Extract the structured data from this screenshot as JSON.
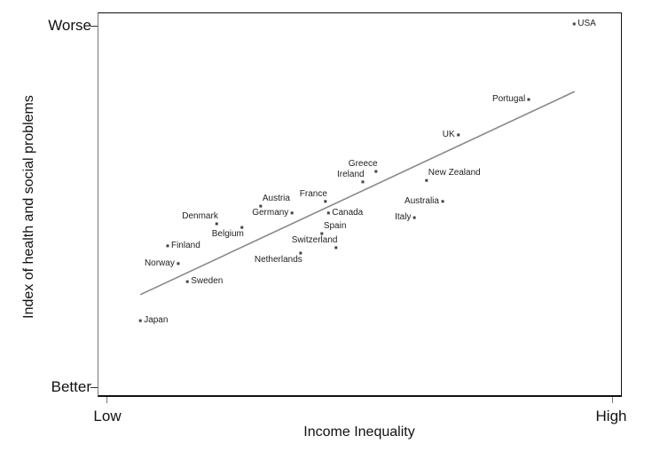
{
  "chart_data": {
    "type": "scatter",
    "title": "",
    "xlabel": "Income Inequality",
    "ylabel": "Index of health and social problems",
    "x_tick_labels": [
      "Low",
      "High"
    ],
    "y_tick_labels": [
      "Better",
      "Worse"
    ],
    "xlim": [
      0,
      100
    ],
    "ylim": [
      0,
      100
    ],
    "grid": false,
    "legend": null,
    "points": [
      {
        "label": "USA",
        "x": 92.5,
        "y": 100.5,
        "label_side": "right"
      },
      {
        "label": "Portugal",
        "x": 83.5,
        "y": 79.6,
        "label_side": "left"
      },
      {
        "label": "UK",
        "x": 69.6,
        "y": 69.8,
        "label_side": "left"
      },
      {
        "label": "New Zealand",
        "x": 63.3,
        "y": 57.2,
        "label_side": "right-up"
      },
      {
        "label": "Australia",
        "x": 66.5,
        "y": 51.4,
        "label_side": "left"
      },
      {
        "label": "Italy",
        "x": 60.9,
        "y": 46.9,
        "label_side": "left"
      },
      {
        "label": "Greece",
        "x": 53.3,
        "y": 59.7,
        "label_side": "left-up"
      },
      {
        "label": "Ireland",
        "x": 50.7,
        "y": 56.8,
        "label_side": "left-up"
      },
      {
        "label": "France",
        "x": 43.3,
        "y": 51.4,
        "label_side": "left-up"
      },
      {
        "label": "Canada",
        "x": 43.9,
        "y": 48.2,
        "label_side": "right"
      },
      {
        "label": "Spain",
        "x": 42.6,
        "y": 42.5,
        "label_side": "right-up"
      },
      {
        "label": "Switzerland",
        "x": 45.4,
        "y": 38.6,
        "label_side": "left-up"
      },
      {
        "label": "Netherlands",
        "x": 38.4,
        "y": 37.1,
        "label_side": "left-down"
      },
      {
        "label": "Austria",
        "x": 30.5,
        "y": 50.1,
        "label_side": "right-up"
      },
      {
        "label": "Germany",
        "x": 36.7,
        "y": 48.2,
        "label_side": "left"
      },
      {
        "label": "Denmark",
        "x": 21.8,
        "y": 45.2,
        "label_side": "left-up"
      },
      {
        "label": "Belgium",
        "x": 26.8,
        "y": 44.2,
        "label_side": "left-down"
      },
      {
        "label": "Finland",
        "x": 12.1,
        "y": 39.1,
        "label_side": "right"
      },
      {
        "label": "Norway",
        "x": 14.2,
        "y": 34.2,
        "label_side": "left"
      },
      {
        "label": "Sweden",
        "x": 16.0,
        "y": 29.2,
        "label_side": "right"
      },
      {
        "label": "Japan",
        "x": 6.7,
        "y": 18.4,
        "label_side": "right"
      }
    ],
    "trendline": {
      "x": [
        6.7,
        92.6
      ],
      "y": [
        25.6,
        81.8
      ],
      "color": "#888888"
    },
    "colors": {
      "point": "#444444",
      "line": "#888888",
      "axes": "#111111"
    }
  },
  "axes": {
    "xlabel": "Income Inequality",
    "ylabel": "Index of health and social problems",
    "x_low": "Low",
    "x_high": "High",
    "y_low": "Better",
    "y_high": "Worse"
  }
}
